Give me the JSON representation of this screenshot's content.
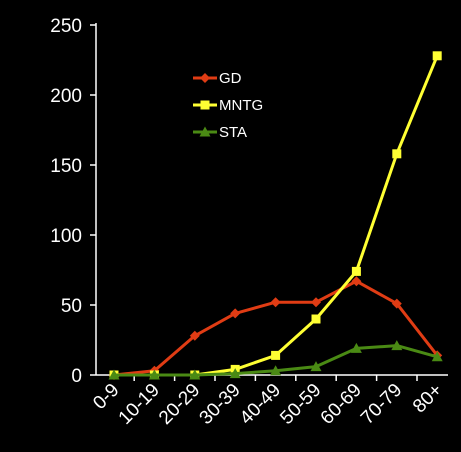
{
  "chart_data": {
    "type": "line",
    "title": "",
    "xlabel": "",
    "ylabel": "",
    "categories": [
      "0-9",
      "10-19",
      "20-29",
      "30-39",
      "40-49",
      "50-59",
      "60-69",
      "70-79",
      "80+"
    ],
    "ylim": [
      0,
      250
    ],
    "yticks": [
      0,
      50,
      100,
      150,
      200,
      250
    ],
    "grid": false,
    "legend_position": "top-center",
    "background": "#000000",
    "axis_color": "#ffffff",
    "series": [
      {
        "name": "GD",
        "color": "#e03c14",
        "marker": "diamond",
        "values": [
          0,
          3,
          28,
          44,
          52,
          52,
          67,
          51,
          14
        ]
      },
      {
        "name": "MNTG",
        "color": "#ffff33",
        "marker": "square",
        "values": [
          0,
          0,
          0,
          4,
          14,
          40,
          74,
          158,
          228
        ]
      },
      {
        "name": "STA",
        "color": "#4a8a14",
        "marker": "triangle",
        "values": [
          0,
          0,
          0,
          1,
          3,
          6,
          19,
          21,
          13
        ]
      }
    ]
  }
}
